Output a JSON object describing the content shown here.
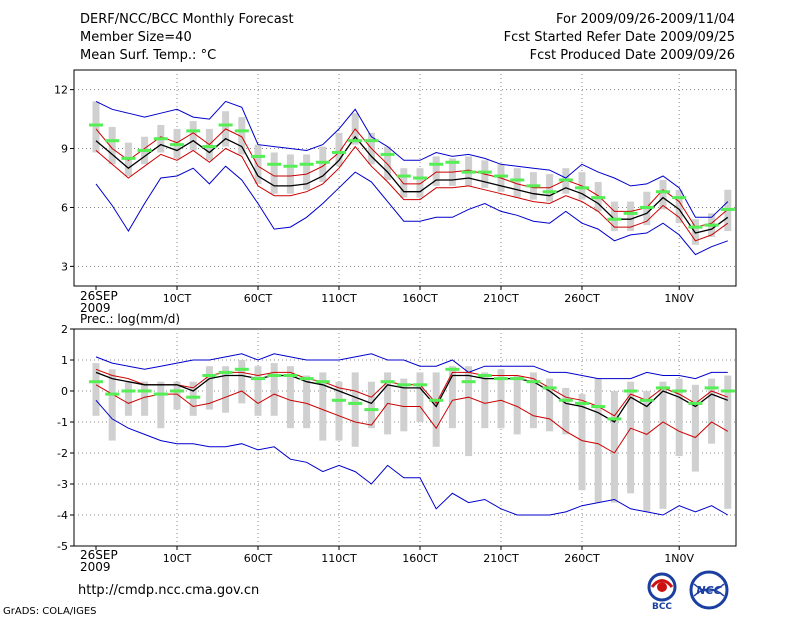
{
  "header": {
    "line1": "DERF/NCC/BCC Monthly Forecast",
    "line2": "Member Size=40",
    "line3": "Mean Surf. Temp.: °C",
    "right1": "For 2009/09/26-2009/11/04",
    "right2": "Fcst Started Refer Date 2009/09/25",
    "right3": "Fcst Produced Date 2009/09/26"
  },
  "footer": {
    "url": "http://cmdp.ncc.cma.gov.cn",
    "grads": "GrADS: COLA/IGES",
    "logo1": "BCC",
    "logo2": "NCC"
  },
  "colors": {
    "max_min": "#0000cc",
    "ensemble_mean": "#000000",
    "spread": "#cc0000",
    "box": "#d0d0d0",
    "marker": "#55ee55"
  },
  "chart_data": [
    {
      "type": "line",
      "title": "Mean Surf. Temp.: °C",
      "x_start_label": "26SEP",
      "x_start_year": "2009",
      "x_tick_labels": [
        "10CT",
        "60CT",
        "110CT",
        "160CT",
        "210CT",
        "260CT",
        "1N0V"
      ],
      "ylim": [
        2,
        13
      ],
      "yticks": [
        3,
        6,
        9,
        12
      ],
      "series": [
        {
          "name": "max",
          "values": [
            11.4,
            11.0,
            10.8,
            10.6,
            10.8,
            11.0,
            10.6,
            10.5,
            11.4,
            11.1,
            9.2,
            9.1,
            9.0,
            8.9,
            9.2,
            10.0,
            11.0,
            9.6,
            9.1,
            8.4,
            8.4,
            8.8,
            8.6,
            8.7,
            8.5,
            8.2,
            8.1,
            8.0,
            7.9,
            7.5,
            8.2,
            7.8,
            7.5,
            7.1,
            7.2,
            7.6,
            7.0,
            5.5,
            5.5,
            6.3
          ]
        },
        {
          "name": "upper",
          "values": [
            10.0,
            9.0,
            8.4,
            9.0,
            9.6,
            9.3,
            9.8,
            9.2,
            10.0,
            9.6,
            8.1,
            7.6,
            7.6,
            7.7,
            8.1,
            8.8,
            10.0,
            9.0,
            8.2,
            7.2,
            7.2,
            7.8,
            7.8,
            7.9,
            7.7,
            7.5,
            7.2,
            7.0,
            7.0,
            7.4,
            7.1,
            6.6,
            5.8,
            5.8,
            6.0,
            6.9,
            6.3,
            5.0,
            5.2,
            5.9
          ]
        },
        {
          "name": "mean",
          "values": [
            9.4,
            8.7,
            8.0,
            8.6,
            9.2,
            8.9,
            9.4,
            8.8,
            9.5,
            9.1,
            7.6,
            7.1,
            7.1,
            7.2,
            7.6,
            8.4,
            9.6,
            8.6,
            7.8,
            6.8,
            6.8,
            7.4,
            7.4,
            7.5,
            7.3,
            7.1,
            6.9,
            6.7,
            6.6,
            7.0,
            6.7,
            6.2,
            5.4,
            5.4,
            5.7,
            6.5,
            5.9,
            4.7,
            4.9,
            5.5
          ]
        },
        {
          "name": "lower",
          "values": [
            8.9,
            8.2,
            7.5,
            8.1,
            8.7,
            8.4,
            8.9,
            8.3,
            9.0,
            8.6,
            7.1,
            6.6,
            6.6,
            6.8,
            7.2,
            8.0,
            9.1,
            8.1,
            7.3,
            6.4,
            6.4,
            7.0,
            7.0,
            7.1,
            6.9,
            6.7,
            6.5,
            6.3,
            6.2,
            6.6,
            6.3,
            5.8,
            5.0,
            5.0,
            5.3,
            6.1,
            5.5,
            4.3,
            4.6,
            5.2
          ]
        },
        {
          "name": "min",
          "values": [
            7.2,
            6.1,
            4.8,
            6.2,
            7.5,
            7.6,
            8.0,
            7.2,
            8.1,
            7.4,
            6.2,
            4.9,
            5.0,
            5.5,
            6.2,
            7.0,
            7.8,
            7.3,
            6.3,
            5.3,
            5.3,
            5.5,
            5.5,
            5.9,
            6.2,
            5.8,
            5.6,
            5.3,
            5.2,
            5.8,
            5.2,
            4.9,
            4.3,
            4.6,
            4.7,
            5.2,
            4.6,
            3.6,
            4.0,
            4.3
          ]
        }
      ],
      "boxes": {
        "top": [
          11.4,
          10.1,
          9.3,
          9.6,
          10.2,
          10.0,
          10.4,
          10.0,
          10.9,
          10.6,
          9.2,
          8.8,
          8.7,
          8.7,
          9.1,
          9.8,
          10.8,
          9.8,
          9.1,
          8.0,
          8.0,
          8.6,
          8.5,
          8.6,
          8.4,
          8.2,
          8.0,
          7.8,
          7.7,
          8.0,
          7.8,
          7.3,
          6.3,
          6.3,
          6.8,
          7.4,
          6.9,
          5.4,
          5.7,
          6.9
        ],
        "bottom": [
          8.8,
          8.2,
          7.6,
          8.2,
          8.8,
          8.5,
          8.9,
          8.4,
          9.1,
          8.7,
          7.2,
          6.7,
          6.7,
          6.9,
          7.3,
          8.1,
          9.2,
          8.2,
          7.4,
          6.5,
          6.5,
          7.1,
          7.1,
          7.1,
          7.0,
          6.8,
          6.5,
          6.4,
          6.3,
          6.7,
          6.4,
          5.8,
          4.8,
          4.8,
          5.1,
          5.9,
          5.2,
          4.1,
          4.5,
          4.8
        ]
      },
      "markers": [
        10.2,
        9.4,
        8.5,
        8.9,
        9.5,
        9.2,
        9.9,
        9.1,
        10.2,
        9.9,
        8.6,
        8.2,
        8.1,
        8.2,
        8.3,
        8.8,
        9.4,
        9.4,
        8.7,
        7.6,
        7.5,
        8.2,
        8.3,
        7.8,
        7.8,
        7.6,
        7.4,
        7.1,
        6.8,
        7.4,
        7.0,
        6.5,
        5.4,
        5.7,
        6.0,
        6.8,
        6.5,
        5.0,
        5.1,
        5.9
      ]
    },
    {
      "type": "line",
      "title": "Prec.: log(mm/d)",
      "x_start_label": "26SEP",
      "x_start_year": "2009",
      "x_tick_labels": [
        "10CT",
        "60CT",
        "110CT",
        "160CT",
        "210CT",
        "260CT",
        "1N0V"
      ],
      "ylim": [
        -5,
        2
      ],
      "yticks": [
        -5,
        -4,
        -3,
        -2,
        -1,
        0,
        1,
        2
      ],
      "series": [
        {
          "name": "max",
          "values": [
            1.1,
            0.9,
            0.8,
            0.7,
            0.8,
            0.9,
            1.0,
            1.0,
            1.1,
            1.2,
            1.0,
            1.2,
            1.1,
            1.0,
            1.0,
            1.0,
            1.1,
            1.2,
            1.0,
            1.0,
            0.8,
            0.8,
            1.0,
            0.6,
            0.8,
            0.8,
            0.8,
            0.8,
            0.6,
            0.6,
            0.5,
            0.4,
            0.4,
            0.4,
            0.6,
            0.5,
            0.5,
            0.4,
            0.6,
            0.6
          ]
        },
        {
          "name": "upper",
          "values": [
            0.7,
            0.5,
            0.4,
            0.2,
            0.2,
            0.2,
            0.1,
            0.5,
            0.6,
            0.6,
            0.5,
            0.6,
            0.6,
            0.4,
            0.3,
            0.1,
            0.0,
            -0.2,
            0.3,
            0.2,
            0.2,
            -0.4,
            0.6,
            0.6,
            0.5,
            0.5,
            0.5,
            0.4,
            0.1,
            -0.2,
            -0.3,
            -0.5,
            -0.8,
            -0.1,
            -0.3,
            0.1,
            -0.1,
            -0.4,
            0.0,
            -0.2
          ]
        },
        {
          "name": "mean",
          "values": [
            0.6,
            0.4,
            0.3,
            0.2,
            0.2,
            0.2,
            0.0,
            0.4,
            0.5,
            0.5,
            0.4,
            0.5,
            0.5,
            0.3,
            0.2,
            0.0,
            -0.2,
            -0.4,
            0.2,
            0.1,
            0.1,
            -0.5,
            0.5,
            0.5,
            0.4,
            0.4,
            0.4,
            0.3,
            0.0,
            -0.4,
            -0.5,
            -0.7,
            -1.0,
            -0.2,
            -0.5,
            0.0,
            -0.2,
            -0.5,
            -0.1,
            -0.3
          ]
        },
        {
          "name": "lower",
          "values": [
            0.2,
            -0.1,
            -0.4,
            -0.2,
            -0.1,
            -0.1,
            -0.5,
            -0.4,
            -0.2,
            0.0,
            -0.4,
            -0.1,
            -0.3,
            -0.4,
            -0.6,
            -0.8,
            -1.0,
            -1.1,
            -0.4,
            -0.5,
            -0.5,
            -1.2,
            -0.3,
            -0.2,
            -0.4,
            -0.3,
            -0.5,
            -0.8,
            -0.9,
            -1.3,
            -1.6,
            -1.7,
            -2.0,
            -1.2,
            -1.4,
            -1.0,
            -1.3,
            -1.5,
            -1.0,
            -1.3
          ]
        },
        {
          "name": "min",
          "values": [
            -0.3,
            -0.9,
            -1.2,
            -1.4,
            -1.6,
            -1.7,
            -1.7,
            -1.8,
            -1.8,
            -1.7,
            -1.9,
            -1.8,
            -2.2,
            -2.3,
            -2.6,
            -2.4,
            -2.6,
            -3.0,
            -2.4,
            -2.8,
            -2.8,
            -3.8,
            -3.3,
            -3.6,
            -3.5,
            -3.8,
            -4.0,
            -4.0,
            -4.0,
            -3.9,
            -3.7,
            -3.6,
            -3.5,
            -3.8,
            -3.9,
            -4.0,
            -3.7,
            -3.9,
            -3.7,
            -4.0
          ]
        }
      ],
      "boxes": {
        "top": [
          0.9,
          0.7,
          0.3,
          0.3,
          0.3,
          0.3,
          0.3,
          0.8,
          0.8,
          1.0,
          0.8,
          0.9,
          0.8,
          0.5,
          0.6,
          0.3,
          0.6,
          0.3,
          0.6,
          0.4,
          0.6,
          0.6,
          0.8,
          0.8,
          0.6,
          0.7,
          0.5,
          0.6,
          0.4,
          0.1,
          -0.1,
          0.4,
          0.0,
          0.3,
          0.0,
          0.3,
          0.4,
          0.2,
          0.4,
          0.5
        ],
        "bottom": [
          -0.8,
          -1.6,
          -0.8,
          -0.8,
          -1.2,
          -0.6,
          -0.8,
          -0.6,
          -0.7,
          -0.4,
          -0.8,
          -0.8,
          -1.2,
          -1.2,
          -1.6,
          -1.6,
          -1.8,
          -1.2,
          -1.4,
          -1.3,
          -1.0,
          -1.8,
          -1.2,
          -2.1,
          -1.2,
          -1.2,
          -1.4,
          -1.2,
          -1.3,
          -1.4,
          -3.2,
          -3.6,
          -3.6,
          -3.3,
          -3.9,
          -3.8,
          -2.1,
          -2.6,
          -1.7,
          -3.8
        ]
      },
      "markers": [
        0.3,
        -0.1,
        0.0,
        0.0,
        -0.1,
        0.0,
        -0.2,
        0.5,
        0.6,
        0.7,
        0.4,
        0.5,
        0.5,
        0.4,
        0.3,
        -0.3,
        -0.4,
        -0.6,
        0.3,
        0.2,
        0.2,
        -0.3,
        0.7,
        0.3,
        0.5,
        0.4,
        0.4,
        0.3,
        0.1,
        -0.3,
        -0.4,
        -0.5,
        -0.9,
        0.0,
        -0.3,
        0.1,
        0.0,
        -0.4,
        0.1,
        0.0
      ]
    }
  ]
}
